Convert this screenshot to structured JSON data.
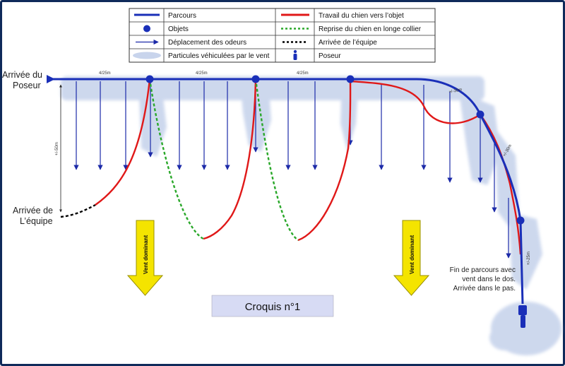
{
  "legend": {
    "items": [
      {
        "label": "Parcours",
        "icon": "blue-line-icon"
      },
      {
        "label": "Travail du chien vers l’objet",
        "icon": "red-line-icon"
      },
      {
        "label": "Objets",
        "icon": "blue-dot-icon"
      },
      {
        "label": "Reprise du chien en longe collier",
        "icon": "green-dotted-line-icon"
      },
      {
        "label": "Déplacement des odeurs",
        "icon": "blue-arrow-icon"
      },
      {
        "label": "Arrivée de l’équipe",
        "icon": "black-dotted-line-icon"
      },
      {
        "label": "Particules véhiculées par le vent",
        "icon": "cloud-icon"
      },
      {
        "label": "Poseur",
        "icon": "person-icon"
      }
    ]
  },
  "labels": {
    "arrivee_poseur_1": "Arrivée du",
    "arrivee_poseur_2": "Poseur",
    "arrivee_equipe_1": "Arrivée de",
    "arrivee_equipe_2": "L’équipe",
    "fin_1": "Fin de parcours avec",
    "fin_2": "vent dans le dos.",
    "fin_3": "Arrivée dans le pas.",
    "vent_dominant": "Vent dominant",
    "croquis": "Croquis n°1"
  },
  "distances": {
    "seg1": "4/25m",
    "seg2": "4/25m",
    "seg3": "4/25m",
    "seg4": "+/-30m",
    "seg5": "+/-30m",
    "seg6": "+/-25m",
    "vertical": "+/-50m"
  },
  "colors": {
    "frame_border": "#0f2a5a",
    "parcours": "#1a2fb8",
    "travail": "#e01818",
    "reprise": "#2aa82a",
    "equipe": "#000000",
    "wind_arrow": "#1c2aa8",
    "cloud": "#c8d4ec",
    "wind_big": "#f4e400",
    "croquis_bg": "#d7dbf4"
  }
}
